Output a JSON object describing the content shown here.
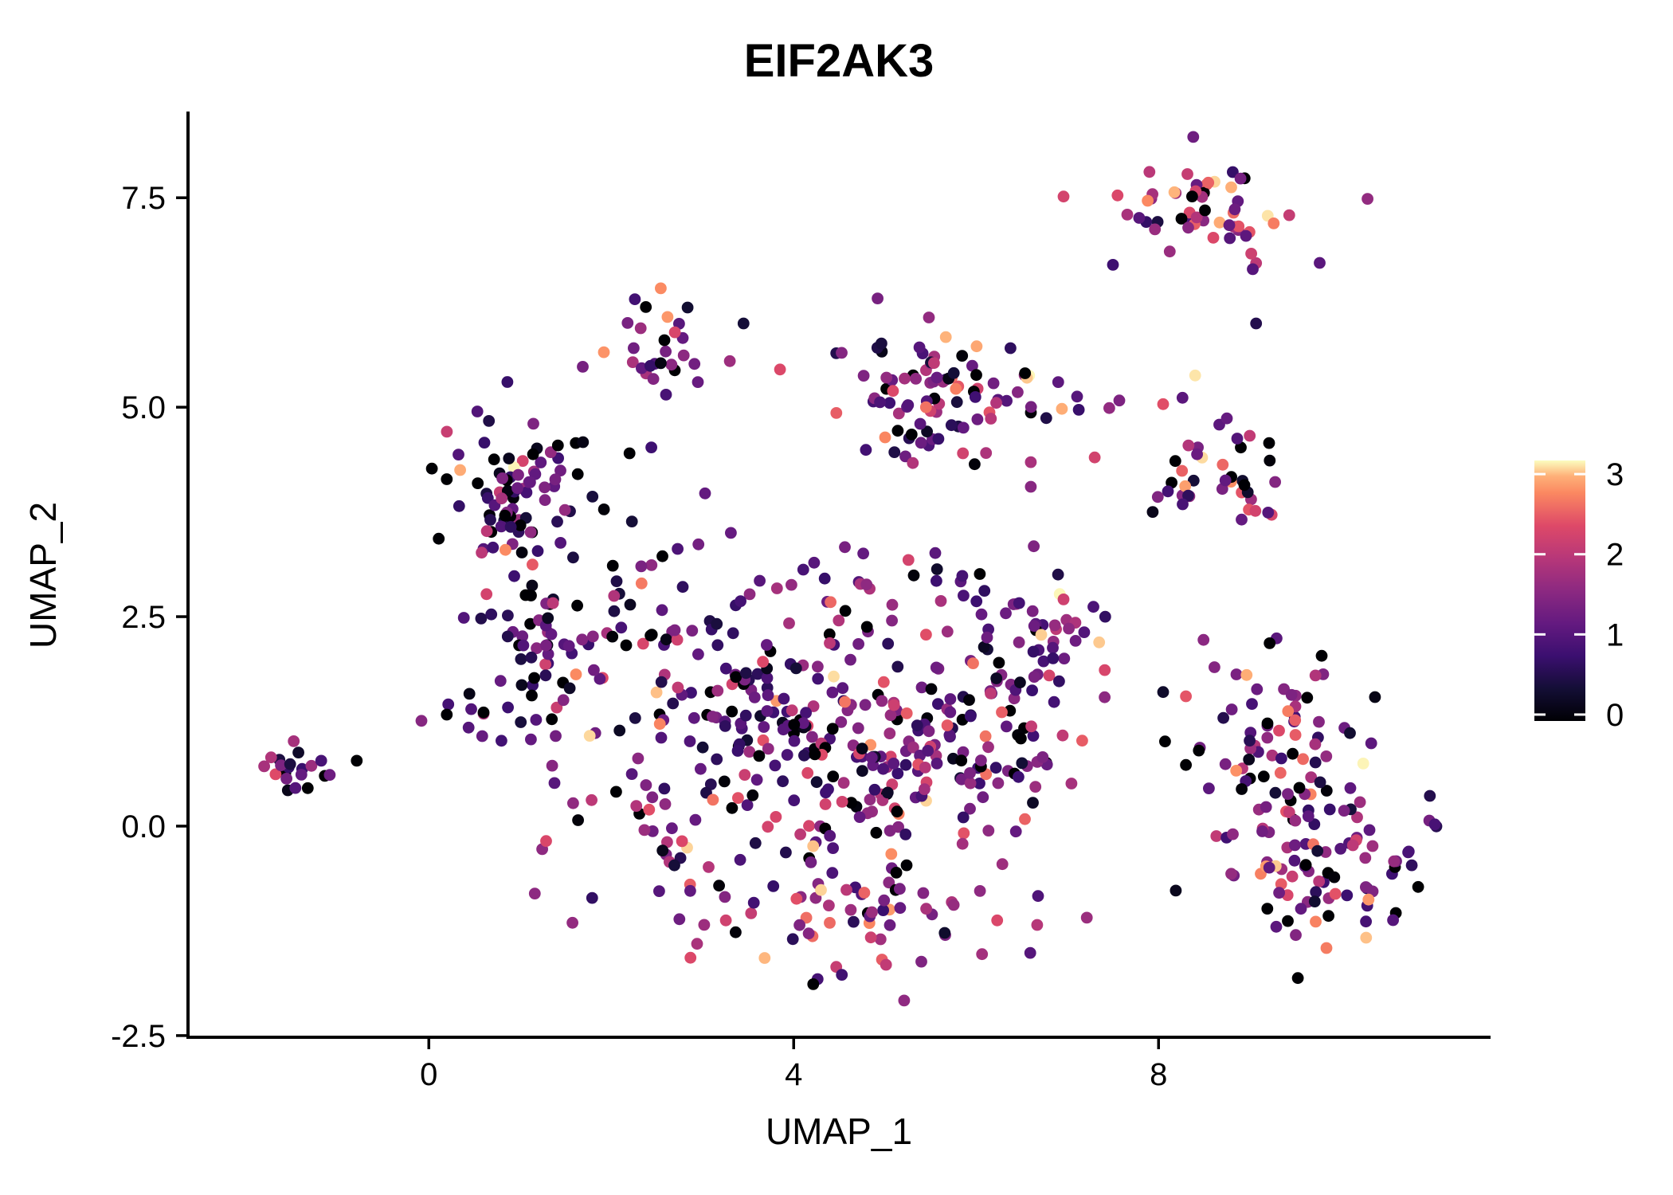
{
  "title": "EIF2AK3",
  "colors": {
    "background": "#ffffff",
    "axis": "#000000",
    "text": "#000000",
    "colorbar_tick": "#ffffff"
  },
  "chart_data": {
    "type": "scatter",
    "title": "EIF2AK3",
    "xlabel": "UMAP_1",
    "ylabel": "UMAP_2",
    "xlim": [
      -2.64,
      11.64
    ],
    "ylim": [
      -2.52,
      8.51
    ],
    "grid": false,
    "x_ticks": [
      {
        "value": 0,
        "label": "0"
      },
      {
        "value": 4,
        "label": "4"
      },
      {
        "value": 8,
        "label": "8"
      }
    ],
    "y_ticks": [
      {
        "value": 7.5,
        "label": "7.5"
      },
      {
        "value": 5.0,
        "label": "5.0"
      },
      {
        "value": 2.5,
        "label": "2.5"
      },
      {
        "value": 0.0,
        "label": "0.0"
      },
      {
        "value": -2.5,
        "label": "-2.5"
      }
    ],
    "legend": {
      "position": "right",
      "ticks": [
        {
          "value": 3,
          "label": "3"
        },
        {
          "value": 2,
          "label": "2"
        },
        {
          "value": 1,
          "label": "1"
        },
        {
          "value": 0,
          "label": "0"
        }
      ],
      "value_range": [
        0,
        3
      ]
    },
    "colormap": {
      "name": "magma",
      "anchors": [
        [
          0.0,
          "#000004"
        ],
        [
          0.125,
          "#140e36"
        ],
        [
          0.25,
          "#3b0f70"
        ],
        [
          0.375,
          "#641a80"
        ],
        [
          0.5,
          "#8c2981"
        ],
        [
          0.625,
          "#b73779"
        ],
        [
          0.75,
          "#de4968"
        ],
        [
          0.875,
          "#fb8861"
        ],
        [
          0.94,
          "#feb078"
        ],
        [
          1.0,
          "#fcfdbf"
        ]
      ]
    },
    "point_radius_px": 7.4,
    "seed": 7,
    "clusters": [
      {
        "id": "far-left",
        "cx": -1.5,
        "cy": 0.62,
        "sx": 0.15,
        "sy": 0.13,
        "n": 18,
        "p0": 0.1,
        "mu": 1.2,
        "sd": 0.6,
        "ph": 0.04
      },
      {
        "id": "left-upper",
        "cx": 0.95,
        "cy": 3.95,
        "sx": 0.4,
        "sy": 0.42,
        "n": 80,
        "p0": 0.17,
        "mu": 1.05,
        "sd": 0.6,
        "ph": 0.06
      },
      {
        "id": "left-lower",
        "cx": 1.4,
        "cy": 2.3,
        "sx": 0.45,
        "sy": 0.55,
        "n": 65,
        "p0": 0.15,
        "mu": 1.1,
        "sd": 0.6,
        "ph": 0.06
      },
      {
        "id": "left-chain",
        "cx": 0.45,
        "cy": 1.35,
        "sx": 0.3,
        "sy": 0.18,
        "n": 13,
        "p0": 0.2,
        "mu": 1.0,
        "sd": 0.5,
        "ph": 0.04
      },
      {
        "id": "top-center",
        "cx": 2.55,
        "cy": 5.8,
        "sx": 0.24,
        "sy": 0.24,
        "n": 26,
        "p0": 0.08,
        "mu": 1.3,
        "sd": 0.6,
        "ph": 0.12
      },
      {
        "id": "top-mid",
        "cx": 5.55,
        "cy": 5.15,
        "sx": 0.55,
        "sy": 0.42,
        "n": 95,
        "p0": 0.06,
        "mu": 1.15,
        "sd": 0.55,
        "ph": 0.1
      },
      {
        "id": "right-upper",
        "cx": 8.55,
        "cy": 4.3,
        "sx": 0.38,
        "sy": 0.38,
        "n": 42,
        "p0": 0.12,
        "mu": 1.4,
        "sd": 0.7,
        "ph": 0.16
      },
      {
        "id": "top-right",
        "cx": 8.6,
        "cy": 7.4,
        "sx": 0.5,
        "sy": 0.27,
        "n": 55,
        "p0": 0.1,
        "mu": 1.6,
        "sd": 0.7,
        "ph": 0.22
      },
      {
        "id": "right-big-upper",
        "cx": 9.4,
        "cy": 1.0,
        "sx": 0.52,
        "sy": 0.52,
        "n": 75,
        "p0": 0.1,
        "mu": 1.2,
        "sd": 0.6,
        "ph": 0.08
      },
      {
        "id": "right-big-lower",
        "cx": 9.9,
        "cy": -0.5,
        "sx": 0.55,
        "sy": 0.45,
        "n": 85,
        "p0": 0.1,
        "mu": 1.2,
        "sd": 0.6,
        "ph": 0.08
      },
      {
        "id": "center-upper-left",
        "cx": 3.1,
        "cy": 1.8,
        "sx": 0.55,
        "sy": 0.5,
        "n": 70,
        "p0": 0.15,
        "mu": 1.0,
        "sd": 0.6,
        "ph": 0.05
      },
      {
        "id": "center-left",
        "cx": 4.3,
        "cy": 0.9,
        "sx": 0.7,
        "sy": 0.65,
        "n": 110,
        "p0": 0.1,
        "mu": 1.2,
        "sd": 0.6,
        "ph": 0.07
      },
      {
        "id": "center-right",
        "cx": 5.6,
        "cy": 0.8,
        "sx": 0.65,
        "sy": 0.7,
        "n": 115,
        "p0": 0.08,
        "mu": 1.25,
        "sd": 0.6,
        "ph": 0.09
      },
      {
        "id": "center-bottom-arc",
        "cx": 4.6,
        "cy": -1.1,
        "sx": 0.85,
        "sy": 0.38,
        "n": 65,
        "p0": 0.06,
        "mu": 1.45,
        "sd": 0.6,
        "ph": 0.12
      },
      {
        "id": "center-right-bump",
        "cx": 6.4,
        "cy": 1.95,
        "sx": 0.45,
        "sy": 0.55,
        "n": 55,
        "p0": 0.1,
        "mu": 1.1,
        "sd": 0.6,
        "ph": 0.07
      },
      {
        "id": "center-left-lobe",
        "cx": 2.6,
        "cy": -0.1,
        "sx": 0.4,
        "sy": 0.55,
        "n": 35,
        "p0": 0.12,
        "mu": 1.3,
        "sd": 0.6,
        "ph": 0.1
      },
      {
        "id": "center-top-band",
        "cx": 4.6,
        "cy": 2.9,
        "sx": 0.85,
        "sy": 0.25,
        "n": 24,
        "p0": 0.12,
        "mu": 1.1,
        "sd": 0.5,
        "ph": 0.05
      },
      {
        "id": "center-right-arm",
        "cx": 7.05,
        "cy": 2.4,
        "sx": 0.3,
        "sy": 0.45,
        "n": 18,
        "p0": 0.08,
        "mu": 1.3,
        "sd": 0.6,
        "ph": 0.1
      },
      {
        "id": "gap-field",
        "cx": 2.3,
        "cy": 3.4,
        "sx": 0.45,
        "sy": 0.55,
        "n": 13,
        "p0": 0.12,
        "mu": 1.0,
        "sd": 0.5,
        "ph": 0.05
      },
      {
        "id": "below-left",
        "cx": 1.35,
        "cy": 0.05,
        "sx": 0.35,
        "sy": 0.45,
        "n": 10,
        "p0": 0.1,
        "mu": 1.4,
        "sd": 0.6,
        "ph": 0.1
      }
    ],
    "extra_points": [
      [
        -1.18,
        0.78,
        0.9
      ],
      [
        -1.14,
        0.6,
        0.0
      ],
      [
        -0.79,
        0.78,
        0.0
      ],
      [
        3.3,
        5.55,
        1.7
      ],
      [
        3.45,
        6.0,
        0.4
      ],
      [
        2.95,
        5.3,
        1.2
      ],
      [
        2.6,
        5.15,
        0.9
      ],
      [
        3.85,
        5.45,
        2.3
      ],
      [
        2.44,
        4.52,
        0.8
      ],
      [
        2.2,
        4.45,
        0.0
      ],
      [
        7.5,
        6.7,
        0.8
      ],
      [
        9.07,
        6.0,
        0.55
      ],
      [
        9.07,
        6.72,
        2.0
      ],
      [
        6.94,
        4.98,
        2.9
      ],
      [
        7.46,
        4.99,
        1.6
      ],
      [
        7.57,
        5.08,
        1.4
      ],
      [
        6.9,
        5.3,
        1.1
      ],
      [
        7.3,
        4.4,
        2.2
      ],
      [
        6.6,
        4.05,
        1.5
      ],
      [
        8.3,
        1.55,
        2.4
      ],
      [
        8.05,
        1.6,
        0.3
      ],
      [
        8.3,
        0.73,
        0.0
      ]
    ]
  }
}
